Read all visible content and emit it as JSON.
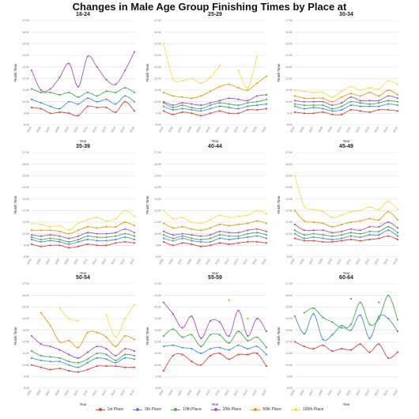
{
  "colors": {
    "1st Place": "#e8423f",
    "5th Place": "#4a90d9",
    "10th Place": "#4caf50",
    "20th Place": "#a855c8",
    "50th Place": "#f39c12",
    "100th Place": "#f5e050"
  },
  "chart_data": {
    "type": "line",
    "title": "Changes in Male Age Group Finishing Times by Place at",
    "xlabel": "Year",
    "ylabel": "Finish Time",
    "x": [
      "2005",
      "2006",
      "2007",
      "2008",
      "2009",
      "2010",
      "2011",
      "2012",
      "2013",
      "2014",
      "2015",
      "2016"
    ],
    "ylim": [
      8,
      17
    ],
    "yticks": [
      "8:00",
      "9:00",
      "10:00",
      "11:00",
      "12:00",
      "13:00",
      "14:00",
      "15:00",
      "16:00",
      "17:00"
    ],
    "legend_position": "bottom",
    "panels": [
      {
        "title": "18-24",
        "series": [
          {
            "name": "1st Place",
            "values": [
              9.5,
              9.4,
              9.0,
              9.1,
              9.0,
              8.8,
              9.6,
              9.5,
              9.5,
              9.1,
              10.0,
              9.2
            ]
          },
          {
            "name": "5th Place",
            "values": [
              10.2,
              9.9,
              9.6,
              9.4,
              10.0,
              9.8,
              10.3,
              10.0,
              10.2,
              9.8,
              10.5,
              10.0
            ]
          },
          {
            "name": "10th Place",
            "values": [
              11.1,
              10.8,
              10.8,
              10.6,
              10.8,
              10.4,
              10.8,
              10.5,
              10.9,
              10.8,
              11.2,
              10.8
            ]
          },
          {
            "name": "20th Place",
            "values": [
              12.7,
              11.0,
              11.1,
              12.1,
              13.3,
              11.3,
              13.9,
              13.0,
              11.9,
              11.5,
              12.7,
              14.3
            ]
          }
        ]
      },
      {
        "title": "25-29",
        "series": [
          {
            "name": "1st Place",
            "values": [
              9.2,
              8.9,
              9.1,
              9.0,
              8.8,
              9.0,
              9.2,
              9.0,
              9.0,
              9.3,
              9.3,
              9.4
            ]
          },
          {
            "name": "5th Place",
            "values": [
              9.6,
              9.3,
              9.4,
              9.3,
              9.2,
              9.4,
              9.6,
              9.5,
              9.4,
              9.6,
              9.7,
              9.8
            ]
          },
          {
            "name": "10th Place",
            "values": [
              9.9,
              9.5,
              9.7,
              9.5,
              9.4,
              9.7,
              9.9,
              9.8,
              9.7,
              9.9,
              10.0,
              10.2
            ]
          },
          {
            "name": "20th Place",
            "values": [
              10.0,
              9.7,
              9.9,
              9.8,
              9.7,
              9.9,
              10.1,
              10.3,
              10.2,
              10.1,
              10.5,
              10.6
            ]
          },
          {
            "name": "50th Place",
            "values": [
              10.8,
              10.5,
              10.4,
              10.3,
              10.5,
              10.9,
              11.3,
              11.5,
              11.2,
              11.0,
              11.6,
              12.2
            ]
          },
          {
            "name": "100th Place",
            "values": [
              15.0,
              12.0,
              11.8,
              12.0,
              11.6,
              12.1,
              13.1,
              null,
              12.7,
              11.2,
              13.9,
              null
            ]
          }
        ]
      },
      {
        "title": "30-34",
        "series": [
          {
            "name": "1st Place",
            "values": [
              9.1,
              9.0,
              9.0,
              9.1,
              8.9,
              8.9,
              9.3,
              9.2,
              9.1,
              9.3,
              9.3,
              9.2
            ]
          },
          {
            "name": "5th Place",
            "values": [
              9.6,
              9.4,
              9.5,
              9.4,
              9.2,
              9.3,
              9.7,
              9.6,
              9.6,
              9.6,
              9.8,
              9.7
            ]
          },
          {
            "name": "10th Place",
            "values": [
              9.8,
              9.7,
              9.7,
              9.7,
              9.4,
              9.6,
              10.0,
              9.9,
              9.8,
              9.9,
              10.1,
              10.0
            ]
          },
          {
            "name": "20th Place",
            "values": [
              10.1,
              10.0,
              10.0,
              10.0,
              9.7,
              9.9,
              10.4,
              10.1,
              10.1,
              10.1,
              10.5,
              10.3
            ]
          },
          {
            "name": "50th Place",
            "values": [
              10.5,
              10.3,
              10.3,
              10.3,
              10.0,
              10.4,
              10.7,
              10.5,
              10.8,
              10.5,
              11.0,
              10.6
            ]
          },
          {
            "name": "100th Place",
            "values": [
              11.0,
              10.9,
              10.8,
              10.8,
              10.4,
              10.9,
              11.3,
              11.0,
              11.2,
              11.1,
              11.8,
              11.5
            ]
          }
        ]
      },
      {
        "title": "35-39",
        "series": [
          {
            "name": "1st Place",
            "values": [
              9.1,
              8.9,
              9.0,
              9.0,
              8.8,
              8.9,
              9.1,
              9.0,
              9.0,
              9.2,
              9.3,
              9.2
            ]
          },
          {
            "name": "5th Place",
            "values": [
              9.5,
              9.3,
              9.4,
              9.3,
              9.1,
              9.3,
              9.5,
              9.4,
              9.4,
              9.5,
              9.7,
              9.5
            ]
          },
          {
            "name": "10th Place",
            "values": [
              9.7,
              9.5,
              9.6,
              9.5,
              9.3,
              9.5,
              9.8,
              9.7,
              9.7,
              9.8,
              10.0,
              9.8
            ]
          },
          {
            "name": "20th Place",
            "values": [
              9.9,
              9.8,
              9.9,
              9.8,
              9.6,
              9.8,
              10.1,
              10.0,
              10.0,
              10.1,
              10.4,
              10.1
            ]
          },
          {
            "name": "50th Place",
            "values": [
              10.3,
              10.3,
              10.3,
              10.2,
              10.0,
              10.3,
              10.6,
              10.5,
              10.6,
              10.6,
              11.0,
              10.7
            ]
          },
          {
            "name": "100th Place",
            "values": [
              10.9,
              10.8,
              10.6,
              10.7,
              10.3,
              10.9,
              11.2,
              11.4,
              11.1,
              11.3,
              12.0,
              11.5
            ]
          }
        ]
      },
      {
        "title": "40-44",
        "series": [
          {
            "name": "1st Place",
            "values": [
              9.3,
              9.0,
              9.2,
              9.1,
              8.9,
              9.0,
              9.2,
              9.1,
              9.2,
              9.3,
              9.3,
              9.2
            ]
          },
          {
            "name": "5th Place",
            "values": [
              9.6,
              9.4,
              9.6,
              9.4,
              9.3,
              9.3,
              9.6,
              9.5,
              9.6,
              9.7,
              9.8,
              9.6
            ]
          },
          {
            "name": "10th Place",
            "values": [
              9.9,
              9.6,
              9.8,
              9.6,
              9.5,
              9.6,
              9.9,
              9.8,
              9.8,
              10.0,
              10.1,
              9.9
            ]
          },
          {
            "name": "20th Place",
            "values": [
              10.2,
              9.9,
              10.0,
              9.9,
              9.8,
              9.9,
              10.2,
              10.1,
              10.1,
              10.3,
              10.4,
              10.2
            ]
          },
          {
            "name": "50th Place",
            "values": [
              10.9,
              10.5,
              10.6,
              10.4,
              10.3,
              10.5,
              10.8,
              10.7,
              10.8,
              10.9,
              11.1,
              10.9
            ]
          },
          {
            "name": "100th Place",
            "values": [
              12.0,
              11.3,
              11.4,
              11.0,
              10.9,
              11.2,
              11.6,
              11.4,
              11.5,
              11.6,
              12.0,
              11.7
            ]
          }
        ]
      },
      {
        "title": "45-49",
        "series": [
          {
            "name": "1st Place",
            "values": [
              9.6,
              9.4,
              9.4,
              9.3,
              9.3,
              9.4,
              9.5,
              9.4,
              9.5,
              9.6,
              9.8,
              9.5
            ]
          },
          {
            "name": "5th Place",
            "values": [
              10.0,
              9.6,
              9.7,
              9.6,
              9.5,
              9.6,
              9.8,
              9.7,
              9.9,
              9.9,
              10.3,
              9.8
            ]
          },
          {
            "name": "10th Place",
            "values": [
              10.3,
              9.9,
              10.0,
              9.9,
              9.8,
              9.9,
              10.1,
              10.0,
              10.2,
              10.2,
              10.6,
              10.1
            ]
          },
          {
            "name": "20th Place",
            "values": [
              10.8,
              10.3,
              10.3,
              10.3,
              10.1,
              10.2,
              10.4,
              10.3,
              10.6,
              10.6,
              11.0,
              10.5
            ]
          },
          {
            "name": "50th Place",
            "values": [
              12.0,
              11.1,
              11.0,
              10.9,
              10.6,
              10.8,
              11.0,
              11.1,
              11.3,
              11.2,
              11.9,
              11.2
            ]
          },
          {
            "name": "100th Place",
            "values": [
              15.0,
              12.4,
              12.1,
              11.9,
              11.4,
              11.6,
              11.9,
              12.0,
              12.3,
              12.1,
              12.8,
              12.1
            ]
          }
        ]
      },
      {
        "title": "50-54",
        "series": [
          {
            "name": "1st Place",
            "values": [
              10.0,
              9.8,
              9.6,
              9.7,
              9.5,
              9.4,
              9.6,
              9.9,
              9.9,
              9.9,
              9.8,
              9.8
            ]
          },
          {
            "name": "5th Place",
            "values": [
              10.6,
              10.4,
              10.3,
              10.3,
              10.0,
              9.8,
              10.2,
              10.6,
              10.5,
              10.2,
              10.6,
              10.5
            ]
          },
          {
            "name": "10th Place",
            "values": [
              11.2,
              10.8,
              10.7,
              10.6,
              10.3,
              10.2,
              10.5,
              11.0,
              10.9,
              10.4,
              10.9,
              10.8
            ]
          },
          {
            "name": "20th Place",
            "values": [
              12.5,
              11.8,
              11.6,
              11.3,
              10.9,
              10.6,
              11.1,
              11.6,
              11.4,
              10.8,
              11.4,
              11.2
            ]
          },
          {
            "name": "50th Place",
            "values": [
              null,
              14.5,
              13.4,
              12.0,
              12.1,
              11.5,
              12.8,
              12.8,
              12.4,
              11.6,
              12.5,
              12.2
            ]
          },
          {
            "name": "100th Place",
            "values": [
              null,
              null,
              null,
              14.9,
              14.0,
              13.8,
              null,
              null,
              14.3,
              12.4,
              14.0,
              15.2
            ]
          }
        ]
      },
      {
        "title": "55-59",
        "series": [
          {
            "name": "1st Place",
            "values": [
              9.5,
              10.8,
              10.9,
              10.3,
              10.0,
              10.8,
              11.0,
              10.5,
              10.9,
              10.9,
              11.0,
              9.9
            ]
          },
          {
            "name": "5th Place",
            "values": [
              11.6,
              11.7,
              11.5,
              11.4,
              11.0,
              11.4,
              11.5,
              11.3,
              11.7,
              11.4,
              11.6,
              10.9
            ]
          },
          {
            "name": "10th Place",
            "values": [
              12.5,
              13.1,
              12.4,
              12.6,
              11.6,
              12.6,
              12.6,
              11.9,
              12.9,
              12.1,
              12.4,
              11.5
            ]
          },
          {
            "name": "20th Place",
            "values": [
              15.4,
              14.4,
              13.2,
              14.2,
              12.3,
              13.8,
              13.7,
              12.5,
              14.7,
              12.5,
              14.0,
              12.9
            ]
          },
          {
            "name": "50th Place",
            "values": [
              null,
              null,
              null,
              null,
              null,
              null,
              null,
              15.6,
              null,
              14.0,
              null,
              null
            ]
          }
        ]
      },
      {
        "title": "60-64",
        "series": [
          {
            "name": "1st Place",
            "values": [
              12.0,
              11.6,
              11.4,
              11.7,
              11.2,
              11.4,
              11.3,
              11.8,
              11.1,
              11.8,
              10.6,
              11.1
            ]
          },
          {
            "name": "5th Place",
            "values": [
              14.2,
              12.7,
              14.4,
              12.2,
              12.6,
              13.4,
              13.0,
              14.3,
              12.3,
              14.2,
              14.0,
              12.9
            ]
          },
          {
            "name": "10th Place",
            "values": [
              null,
              14.5,
              14.9,
              14.1,
              13.7,
              13.2,
              13.5,
              15.4,
              13.5,
              14.0,
              16.0,
              13.9
            ]
          },
          {
            "name": "20th Place",
            "values": [
              null,
              null,
              null,
              null,
              null,
              null,
              15.7,
              null,
              null,
              15.4,
              null,
              null
            ]
          }
        ]
      }
    ]
  }
}
